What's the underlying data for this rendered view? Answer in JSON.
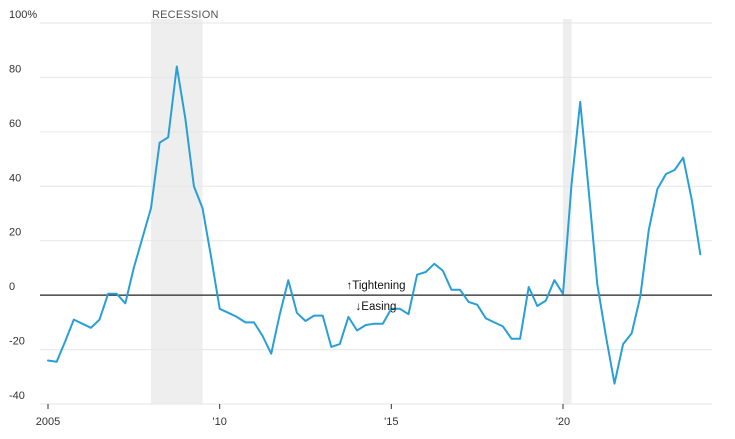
{
  "chart_data": {
    "type": "line",
    "title": "",
    "xlabel": "",
    "ylabel": "",
    "xlim": [
      2005.0,
      2024.0
    ],
    "ylim": [
      -40,
      100
    ],
    "grid": true,
    "colors": {
      "line": "#2a9fd6",
      "zero_line": "#222222",
      "grid": "#e6e6e6",
      "recession": "#eeeeee"
    },
    "y_ticks": [
      {
        "value": 100,
        "label": "100%"
      },
      {
        "value": 80,
        "label": "80"
      },
      {
        "value": 60,
        "label": "60"
      },
      {
        "value": 40,
        "label": "40"
      },
      {
        "value": 20,
        "label": "20"
      },
      {
        "value": 0,
        "label": "0"
      },
      {
        "value": -20,
        "label": "-20"
      },
      {
        "value": -40,
        "label": "-40"
      }
    ],
    "x_ticks": [
      {
        "value": 2005,
        "label": "2005"
      },
      {
        "value": 2010,
        "label": "'10"
      },
      {
        "value": 2015,
        "label": "'15"
      },
      {
        "value": 2020,
        "label": "'20"
      }
    ],
    "recessions": [
      {
        "start": 2008.0,
        "end": 2009.5,
        "label": "RECESSION"
      },
      {
        "start": 2020.0,
        "end": 2020.25,
        "label": ""
      }
    ],
    "annotations": {
      "tightening": "↑Tightening",
      "easing": "↓Easing"
    },
    "series": [
      {
        "x": [
          2005.0,
          2005.25,
          2005.5,
          2005.75,
          2006.0,
          2006.25,
          2006.5,
          2006.75,
          2007.0,
          2007.25,
          2007.5,
          2007.75,
          2008.0,
          2008.25,
          2008.5,
          2008.75,
          2009.0,
          2009.25,
          2009.5,
          2009.75,
          2010.0,
          2010.25,
          2010.5,
          2010.75,
          2011.0,
          2011.25,
          2011.5,
          2011.75,
          2012.0,
          2012.25,
          2012.5,
          2012.75,
          2013.0,
          2013.25,
          2013.5,
          2013.75,
          2014.0,
          2014.25,
          2014.5,
          2014.75,
          2015.0,
          2015.25,
          2015.5,
          2015.75,
          2016.0,
          2016.25,
          2016.5,
          2016.75,
          2017.0,
          2017.25,
          2017.5,
          2017.75,
          2018.0,
          2018.25,
          2018.5,
          2018.75,
          2019.0,
          2019.25,
          2019.5,
          2019.75,
          2020.0,
          2020.25,
          2020.5,
          2020.75,
          2021.0,
          2021.25,
          2021.5,
          2021.75,
          2022.0,
          2022.25,
          2022.5,
          2022.75,
          2023.0,
          2023.25,
          2023.5,
          2023.75,
          2024.0
        ],
        "values": [
          -24,
          -24.5,
          -17,
          -9,
          -10.5,
          -12,
          -9,
          0.5,
          0.5,
          -3,
          10,
          21,
          32,
          56,
          58,
          84,
          65,
          40,
          32,
          14,
          -5,
          -6.5,
          -8,
          -10,
          -10,
          -15,
          -21.5,
          -7,
          5.5,
          -6.5,
          -9.5,
          -7.5,
          -7.5,
          -19,
          -18,
          -8,
          -13,
          -11,
          -10.5,
          -10.5,
          -5,
          -5,
          -7,
          7.5,
          8.5,
          11.5,
          9,
          2,
          2,
          -2.5,
          -3.5,
          -8.5,
          -10,
          -11.5,
          -16,
          -16,
          3,
          -4,
          -2,
          5.5,
          0.5,
          41,
          71,
          38,
          4,
          -15,
          -32.5,
          -18,
          -14,
          -0.5,
          24,
          39,
          44.5,
          46,
          50.5,
          35,
          15
        ]
      }
    ]
  }
}
